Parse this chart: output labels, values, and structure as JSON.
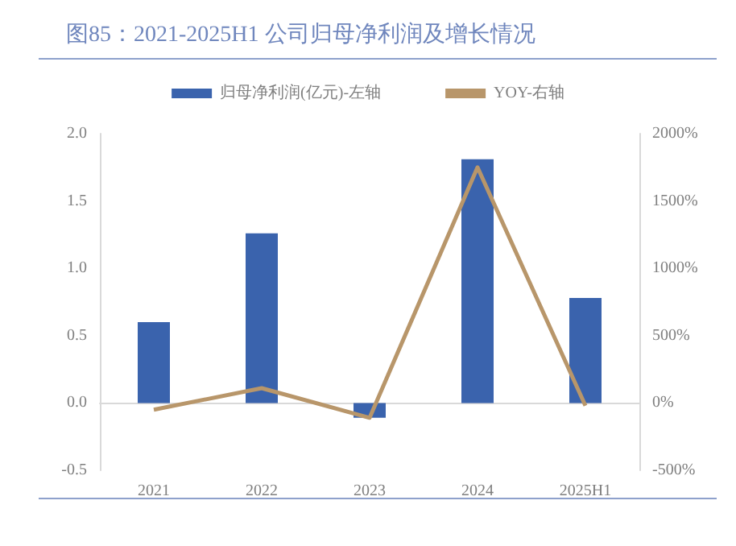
{
  "chart_data": {
    "type": "bar",
    "title": "图85：2021-2025H1 公司归母净利润及增长情况",
    "categories": [
      "2021",
      "2022",
      "2023",
      "2024",
      "2025H1"
    ],
    "series": [
      {
        "name": "归母净利润(亿元)-左轴",
        "color": "#3a63ad",
        "values": [
          0.6,
          1.26,
          -0.11,
          1.81,
          0.78
        ]
      },
      {
        "name": "YOY-右轴",
        "type": "line",
        "axis": "y2",
        "color": "#b8966a",
        "marker": "none",
        "values": [
          -50,
          110,
          -110,
          1750,
          -20
        ]
      }
    ],
    "ylim": [
      -0.5,
      2.0
    ],
    "yticks": [
      {
        "value": -0.5,
        "label": "-0.5"
      },
      {
        "value": 0,
        "label": "0.0"
      },
      {
        "value": 0.5,
        "label": "0.5"
      },
      {
        "value": 1,
        "label": "1.0"
      },
      {
        "value": 1.5,
        "label": "1.5"
      },
      {
        "value": 2,
        "label": "2.0"
      }
    ],
    "y2lim": [
      -500,
      2000
    ],
    "y2ticks": [
      {
        "value": -500,
        "label": "-500%"
      },
      {
        "value": 0,
        "label": "0%"
      },
      {
        "value": 500,
        "label": "500%"
      },
      {
        "value": 1000,
        "label": "1000%"
      },
      {
        "value": 1500,
        "label": "1500%"
      },
      {
        "value": 2000,
        "label": "2000%"
      }
    ],
    "legend": "top"
  }
}
